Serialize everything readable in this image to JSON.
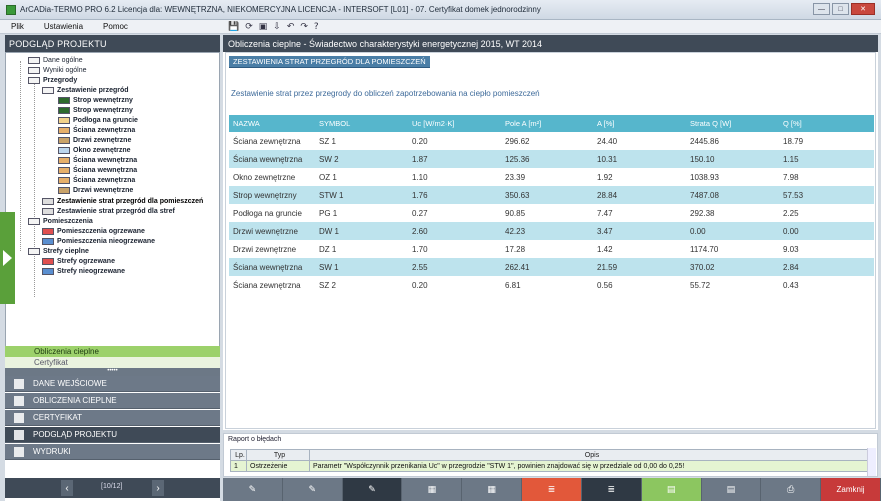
{
  "window": {
    "title": "ArCADia-TERMO PRO 6.2 Licencja dla: WEWNĘTRZNA, NIEKOMERCYJNA LICENCJA - INTERSOFT [L01] - 07. Certyfikat domek jednorodzinny",
    "minimize": "—",
    "maximize": "□",
    "close": "✕"
  },
  "menu": [
    "Plik",
    "Ustawienia",
    "Pomoc"
  ],
  "toolbar_icons": [
    "save-icon",
    "refresh-icon",
    "print-icon",
    "import-icon",
    "undo-icon",
    "redo-icon",
    "help-icon"
  ],
  "left": {
    "title": "PODGLĄD PROJEKTU",
    "tree": [
      {
        "label": "Dane ogólne",
        "icon": "form-icon"
      },
      {
        "label": "Wyniki ogólne",
        "icon": "results-icon"
      },
      {
        "label": "Przegrody",
        "icon": "partitions-icon"
      },
      {
        "label": "Zestawienie przegród",
        "icon": "list-icon"
      },
      {
        "label": "Strop wewnętrzny",
        "icon": "ceiling-icon"
      },
      {
        "label": "Strop wewnętrzny",
        "icon": "ceiling-icon"
      },
      {
        "label": "Podłoga na gruncie",
        "icon": "floor-icon"
      },
      {
        "label": "Ściana zewnętrzna",
        "icon": "wall-icon"
      },
      {
        "label": "Drzwi zewnętrzne",
        "icon": "door-icon"
      },
      {
        "label": "Okno zewnętrzne",
        "icon": "window-icon"
      },
      {
        "label": "Ściana wewnętrzna",
        "icon": "wall-icon"
      },
      {
        "label": "Ściana wewnętrzna",
        "icon": "wall-icon"
      },
      {
        "label": "Ściana zewnętrzna",
        "icon": "wall-icon"
      },
      {
        "label": "Drzwi wewnętrzne",
        "icon": "door-icon"
      },
      {
        "label": "Zestawienie strat przegród dla pomieszczeń",
        "icon": "table-icon"
      },
      {
        "label": "Zestawienie strat przegród dla stref",
        "icon": "table-icon"
      },
      {
        "label": "Pomieszczenia",
        "icon": "rooms-icon"
      },
      {
        "label": "Pomieszczenia ogrzewane",
        "icon": "heated-room-icon"
      },
      {
        "label": "Pomieszczenia nieogrzewane",
        "icon": "unheated-room-icon"
      },
      {
        "label": "Strefy cieplne",
        "icon": "zones-icon"
      },
      {
        "label": "Strefy ogrzewane",
        "icon": "heated-zone-icon"
      },
      {
        "label": "Strefy nieogrzewane",
        "icon": "unheated-zone-icon"
      }
    ],
    "subtabs": [
      "Obliczenia cieplne",
      "Certyfikat"
    ],
    "handle": "•••••",
    "nav": [
      "DANE WEJŚCIOWE",
      "OBLICZENIA CIEPLNE",
      "CERTYFIKAT",
      "PODGLĄD PROJEKTU",
      "WYDRUKI"
    ],
    "page": "[10/12]",
    "prev": "‹",
    "next": "›"
  },
  "main": {
    "title": "Obliczenia cieplne - Świadectwo charakterystyki energetycznej 2015, WT 2014",
    "section": "ZESTAWIENIA STRAT PRZEGRÓD DLA POMIESZCZEŃ",
    "description": "Zestawienie strat przez przegrody do obliczeń zapotrzebowania na ciepło pomieszczeń",
    "columns": [
      "NAZWA",
      "SYMBOL",
      "Uc [W/m2·K]",
      "Pole A [m²]",
      "A [%]",
      "Strata Q [W]",
      "Q [%]"
    ],
    "rows": [
      [
        "Ściana zewnętrzna",
        "SZ 1",
        "0.20",
        "296.62",
        "24.40",
        "2445.86",
        "18.79"
      ],
      [
        "Ściana wewnętrzna",
        "SW 2",
        "1.87",
        "125.36",
        "10.31",
        "150.10",
        "1.15"
      ],
      [
        "Okno zewnętrzne",
        "OZ 1",
        "1.10",
        "23.39",
        "1.92",
        "1038.93",
        "7.98"
      ],
      [
        "Strop wewnętrzny",
        "STW 1",
        "1.76",
        "350.63",
        "28.84",
        "7487.08",
        "57.53"
      ],
      [
        "Podłoga na gruncie",
        "PG 1",
        "0.27",
        "90.85",
        "7.47",
        "292.38",
        "2.25"
      ],
      [
        "Drzwi wewnętrzne",
        "DW 1",
        "2.60",
        "42.23",
        "3.47",
        "0.00",
        "0.00"
      ],
      [
        "Drzwi zewnętrzne",
        "DZ 1",
        "1.70",
        "17.28",
        "1.42",
        "1174.70",
        "9.03"
      ],
      [
        "Ściana wewnętrzna",
        "SW 1",
        "2.55",
        "262.41",
        "21.59",
        "370.02",
        "2.84"
      ],
      [
        "Ściana zewnętrzna",
        "SZ 2",
        "0.20",
        "6.81",
        "0.56",
        "55.72",
        "0.43"
      ]
    ]
  },
  "report": {
    "title": "Raport o błędach",
    "columns": [
      "Lp.",
      "Typ",
      "Opis"
    ],
    "row": [
      "1",
      "Ostrzeżenie",
      "Parametr \"Współczynnik przenikania Uc\" w przegrodzie \"STW 1\", powinien znajdować się w przedziale od 0,00 do 0,25!"
    ]
  },
  "bottombar": {
    "close_label": "Zamknij"
  }
}
